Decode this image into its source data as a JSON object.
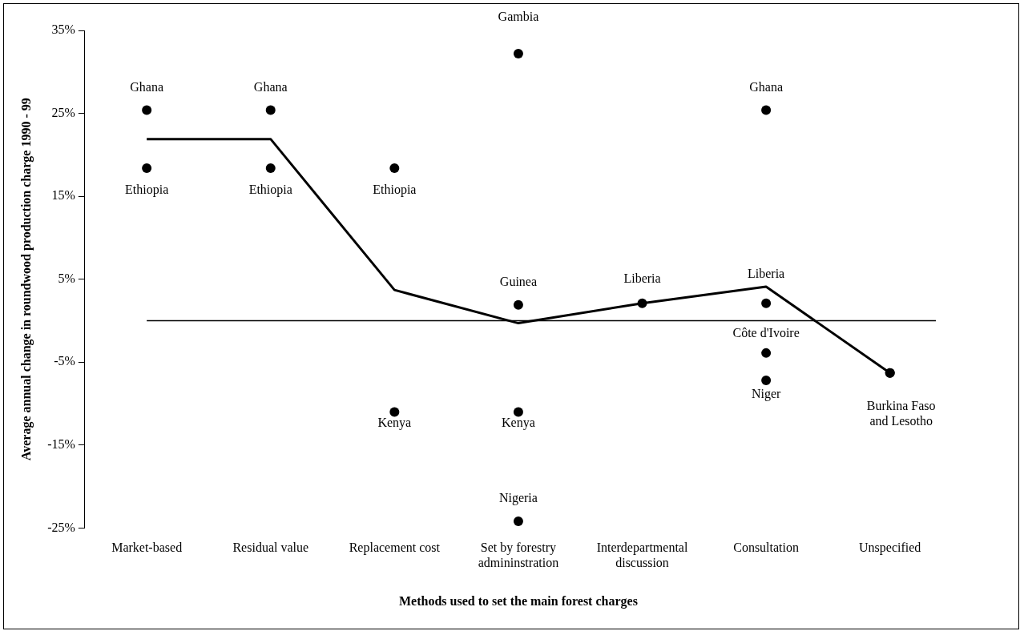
{
  "chart_data": {
    "type": "scatter",
    "xlabel": "Methods used to set the main forest charges",
    "ylabel": "Average annual change in roundwood production charge 1990 - 99",
    "categories": [
      "Market-based",
      "Residual value",
      "Replacement cost",
      "Set by forestry admininstration",
      "Interdepartmental discussion",
      "Consultation",
      "Unspecified"
    ],
    "series": [
      {
        "type": "scatter",
        "color": "#000000",
        "marker": "circle",
        "x": [
          "Market-based",
          "Market-based",
          "Residual value",
          "Residual value",
          "Replacement cost",
          "Replacement cost",
          "Set by forestry admininstration",
          "Set by forestry admininstration",
          "Set by forestry admininstration",
          "Set by forestry admininstration",
          "Interdepartmental discussion",
          "Consultation",
          "Consultation",
          "Consultation",
          "Consultation",
          "Unspecified",
          "Unspecified"
        ],
        "values": [
          25.4,
          18.4,
          25.4,
          18.4,
          18.4,
          -11.0,
          32.2,
          1.9,
          -11.0,
          -24.2,
          2.1,
          25.4,
          2.1,
          -3.9,
          -7.2,
          -6.3,
          -6.3
        ]
      },
      {
        "type": "line",
        "color": "#000000",
        "marker": "none",
        "line_style": "solid",
        "values": [
          21.9,
          21.9,
          3.7,
          -0.3,
          2.1,
          4.1,
          -6.3
        ]
      }
    ],
    "ylim": [
      -25,
      35
    ],
    "yticks": [
      {
        "value": -25,
        "label": "-25%"
      },
      {
        "value": -15,
        "label": "-15%"
      },
      {
        "value": -5,
        "label": "-5%"
      },
      {
        "value": 5,
        "label": "5%"
      },
      {
        "value": 15,
        "label": "15%"
      },
      {
        "value": 25,
        "label": "25%"
      },
      {
        "value": 35,
        "label": "35%"
      }
    ],
    "ref_lines": [
      {
        "axis": "y",
        "value": 0,
        "color": "#000000"
      }
    ],
    "annotations": [
      {
        "text": "Ghana",
        "x": "Market-based",
        "y": 25.4
      },
      {
        "text": "Ethiopia",
        "x": "Market-based",
        "y": 18.4
      },
      {
        "text": "Ghana",
        "x": "Residual value",
        "y": 25.4
      },
      {
        "text": "Ethiopia",
        "x": "Residual value",
        "y": 18.4
      },
      {
        "text": "Ethiopia",
        "x": "Replacement cost",
        "y": 18.4
      },
      {
        "text": "Kenya",
        "x": "Replacement cost",
        "y": -11.0
      },
      {
        "text": "Gambia",
        "x": "Set by forestry admininstration",
        "y": 32.2
      },
      {
        "text": "Guinea",
        "x": "Set by forestry admininstration",
        "y": 1.9
      },
      {
        "text": "Kenya",
        "x": "Set by forestry admininstration",
        "y": -11.0
      },
      {
        "text": "Nigeria",
        "x": "Set by forestry admininstration",
        "y": -24.2
      },
      {
        "text": "Liberia",
        "x": "Interdepartmental discussion",
        "y": 2.1
      },
      {
        "text": "Ghana",
        "x": "Consultation",
        "y": 25.4
      },
      {
        "text": "Liberia",
        "x": "Consultation",
        "y": 2.1
      },
      {
        "text": "Côte d'Ivoire",
        "x": "Consultation",
        "y": -3.9
      },
      {
        "text": "Niger",
        "x": "Consultation",
        "y": -7.2
      },
      {
        "text": "Burkina Faso and Lesotho",
        "x": "Unspecified",
        "y": -6.3
      }
    ]
  }
}
